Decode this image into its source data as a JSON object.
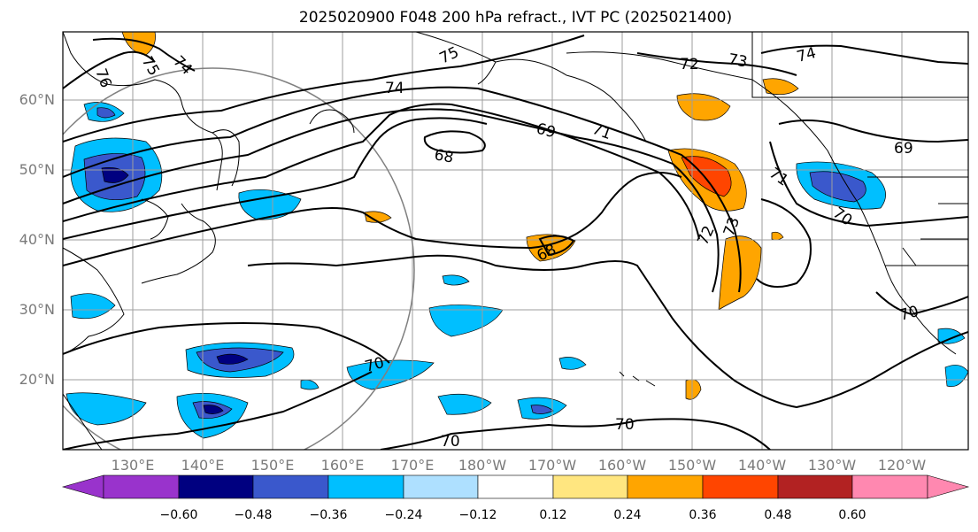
{
  "title": "2025020900 F048 200 hPa refract., IVT PC (2025021400)",
  "lat_labels": [
    "60°N",
    "50°N",
    "40°N",
    "30°N",
    "20°N"
  ],
  "lon_labels": [
    "130°E",
    "140°E",
    "150°E",
    "160°E",
    "170°E",
    "180°W",
    "170°W",
    "160°W",
    "150°W",
    "140°W",
    "130°W",
    "120°W"
  ],
  "colorbar": {
    "ticks": [
      "−0.60",
      "−0.48",
      "−0.36",
      "−0.24",
      "−0.12",
      "0.12",
      "0.24",
      "0.36",
      "0.48",
      "0.60"
    ],
    "colors": [
      "#9933cc",
      "#000080",
      "#3a58cc",
      "#00bfff",
      "#aee0ff",
      "#ffffff",
      "#ffe680",
      "#ffa500",
      "#ff4500",
      "#b22222",
      "#ff88b0"
    ]
  },
  "contour_labels": [
    "76",
    "75",
    "74",
    "75",
    "74",
    "72",
    "73",
    "74",
    "68",
    "69",
    "71",
    "71",
    "70",
    "72",
    "73",
    "68",
    "69",
    "70",
    "70",
    "70",
    "70"
  ]
}
